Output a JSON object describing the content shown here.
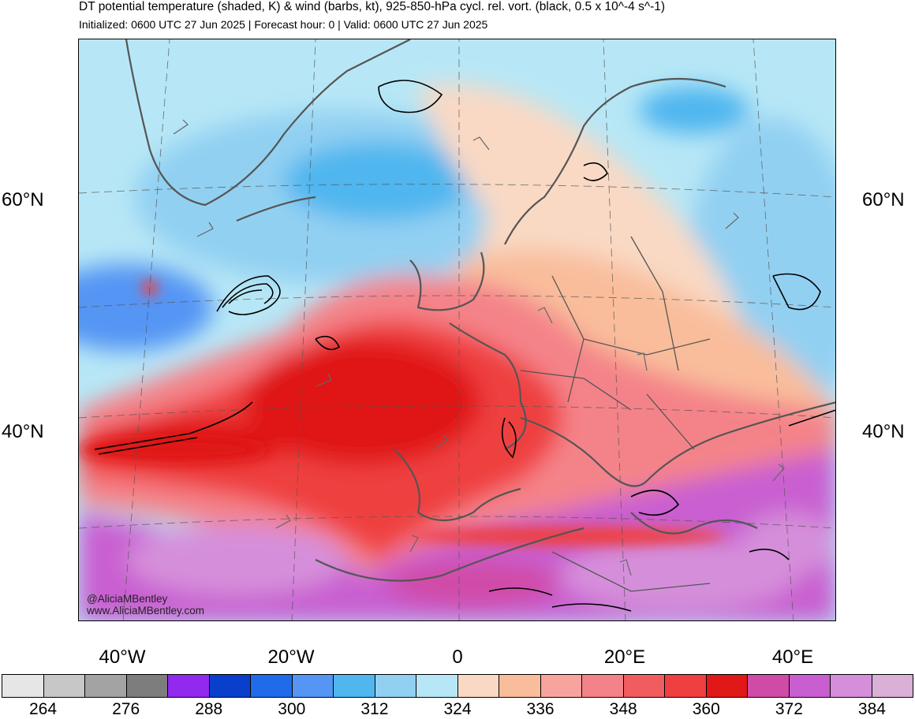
{
  "header": {
    "title": "DT potential temperature (shaded, K) & wind (barbs, kt), 925-850-hPa cycl. rel. vort. (black, 0.5 x 10^-4 s^-1)",
    "subtitle": "Initialized: 0600 UTC 27 Jun 2025 | Forecast hour: 0 | Valid: 0600 UTC 27 Jun 2025"
  },
  "map": {
    "lat_labels_left": [
      "60°N",
      "40°N"
    ],
    "lat_labels_right": [
      "60°N",
      "40°N"
    ],
    "lon_labels": [
      "40°W",
      "20°W",
      "0",
      "20°E",
      "40°E"
    ],
    "credits": [
      "@AliciaMBentley",
      "www.AliciaMBentley.com"
    ]
  },
  "colorbar": {
    "colors": [
      "#e6e6e6",
      "#c7c7c7",
      "#a3a3a3",
      "#7d7d7d",
      "#9129ee",
      "#0a3fcb",
      "#1f6bea",
      "#5595f4",
      "#4fb6ef",
      "#92d0f2",
      "#b7e7f6",
      "#f9d9c4",
      "#f9bd9b",
      "#f7a49f",
      "#f48389",
      "#f15c5e",
      "#ef3f40",
      "#e01818",
      "#d04ba7",
      "#c95ed1",
      "#d58fda",
      "#dbb0d6"
    ],
    "labels": [
      "264",
      "276",
      "288",
      "300",
      "312",
      "324",
      "336",
      "348",
      "360",
      "372",
      "384"
    ]
  }
}
